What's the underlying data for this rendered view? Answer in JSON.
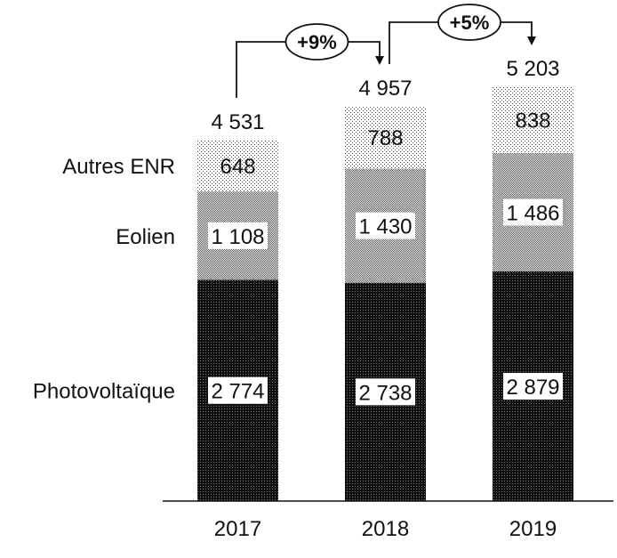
{
  "chart_data": {
    "type": "bar",
    "stacked": true,
    "categories": [
      "2017",
      "2018",
      "2019"
    ],
    "series": [
      {
        "name": "Photovoltaïque",
        "values": [
          2774,
          2738,
          2879
        ],
        "pattern": "dense-dark-dots",
        "color": "#1a1a1a"
      },
      {
        "name": "Eolien",
        "values": [
          1108,
          1430,
          1486
        ],
        "pattern": "grey-checker",
        "color": "#8c8c8c"
      },
      {
        "name": "Autres ENR",
        "values": [
          648,
          788,
          838
        ],
        "pattern": "sparse-dots",
        "color": "#e6e6e6"
      }
    ],
    "data_labels": {
      "Photovoltaïque": [
        "2 774",
        "2 738",
        "2 879"
      ],
      "Eolien": [
        "1 108",
        "1 430",
        "1 486"
      ],
      "Autres ENR": [
        "648",
        "788",
        "838"
      ]
    },
    "totals": [
      "4 531",
      "4 957",
      "5 203"
    ],
    "annotations": [
      {
        "from": "2017",
        "to": "2018",
        "label": "+9%"
      },
      {
        "from": "2018",
        "to": "2019",
        "label": "+5%"
      }
    ],
    "legend_placement": "left, inline series labels",
    "grid": false,
    "ylim": [
      0,
      6300
    ]
  }
}
